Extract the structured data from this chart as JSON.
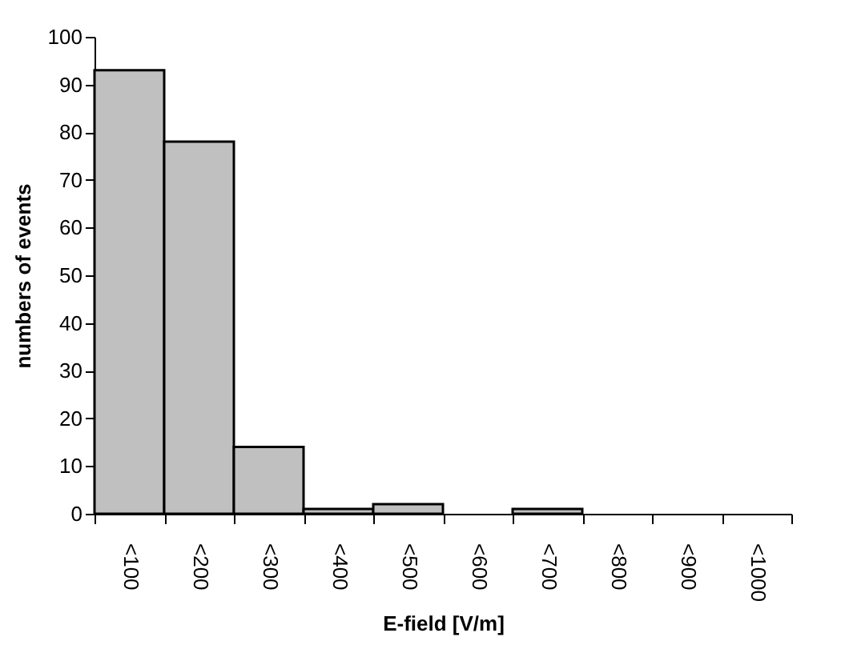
{
  "chart_data": {
    "type": "bar",
    "xlabel": "E-field [V/m]",
    "ylabel": "numbers of events",
    "categories": [
      "<100",
      "<200",
      "<300",
      "<400",
      "<500",
      "<600",
      "<700",
      "<800",
      "<900",
      "<1000"
    ],
    "values": [
      93,
      78,
      14,
      1,
      2,
      0,
      1,
      0,
      0,
      0
    ],
    "color": "#c0c0c0",
    "ylim": [
      0,
      100
    ],
    "yticks": [
      0,
      10,
      20,
      30,
      40,
      50,
      60,
      70,
      80,
      90,
      100
    ],
    "grid": false
  }
}
